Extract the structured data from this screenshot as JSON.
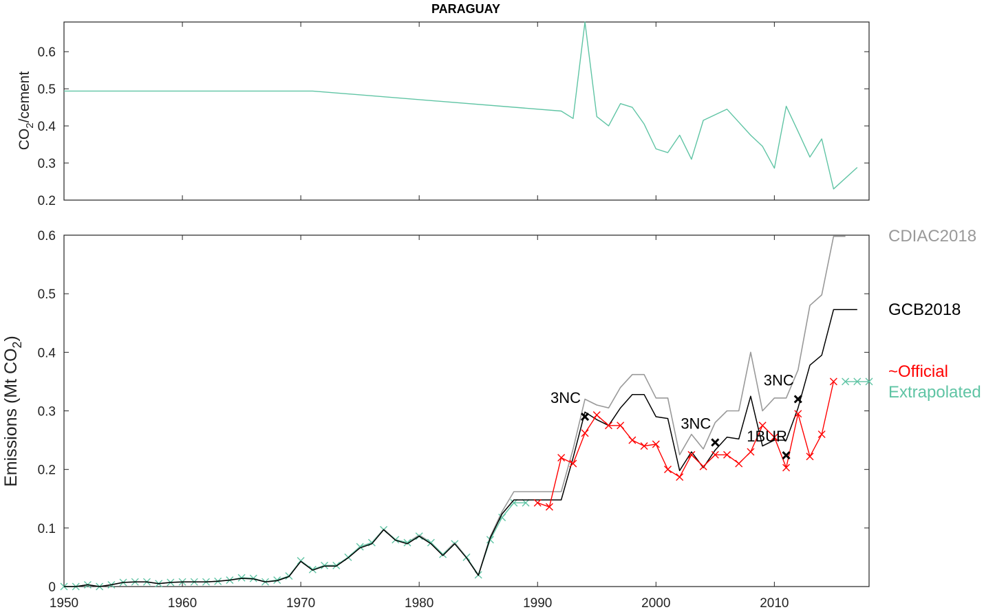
{
  "title": "PARAGUAY",
  "colors": {
    "cdiac": "#999999",
    "gcb": "#000000",
    "official": "#ff0000",
    "extrapolated": "#5fc4a4",
    "axis": "#222222"
  },
  "chart_data": [
    {
      "type": "line",
      "ylabel_main": "CO",
      "ylabel_sub": "2",
      "ylabel_rest": "/cement",
      "xlim": [
        1950,
        2018
      ],
      "ylim": [
        0.2,
        0.68
      ],
      "xticks": [
        1950,
        1960,
        1970,
        1980,
        1990,
        2000,
        2010
      ],
      "yticks": [
        0.2,
        0.3,
        0.4,
        0.5,
        0.6
      ],
      "ytick_labels": [
        "0.2",
        "0.3",
        "0.4",
        "0.5",
        "0.6"
      ],
      "series": [
        {
          "color_key": "extrapolated",
          "points": [
            [
              1950,
              0.494
            ],
            [
              1971,
              0.494
            ],
            [
              1992,
              0.44
            ],
            [
              1993,
              0.42
            ],
            [
              1994,
              0.68
            ],
            [
              1995,
              0.425
            ],
            [
              1996,
              0.4
            ],
            [
              1997,
              0.46
            ],
            [
              1998,
              0.45
            ],
            [
              1999,
              0.405
            ],
            [
              2000,
              0.338
            ],
            [
              2001,
              0.328
            ],
            [
              2002,
              0.375
            ],
            [
              2003,
              0.31
            ],
            [
              2004,
              0.415
            ],
            [
              2006,
              0.445
            ],
            [
              2007,
              0.41
            ],
            [
              2008,
              0.375
            ],
            [
              2009,
              0.345
            ],
            [
              2010,
              0.286
            ],
            [
              2011,
              0.453
            ],
            [
              2012,
              0.385
            ],
            [
              2013,
              0.316
            ],
            [
              2014,
              0.365
            ],
            [
              2015,
              0.23
            ],
            [
              2017,
              0.288
            ]
          ]
        }
      ]
    },
    {
      "type": "line",
      "ylabel_main": "Emissions (Mt CO",
      "ylabel_sub": "2",
      "ylabel_rest": ")",
      "xlim": [
        1950,
        2018
      ],
      "ylim": [
        0,
        0.6
      ],
      "xticks": [
        1950,
        1960,
        1970,
        1980,
        1990,
        2000,
        2010
      ],
      "xtick_labels": [
        "1950",
        "1960",
        "1970",
        "1980",
        "1990",
        "2000",
        "2010"
      ],
      "yticks": [
        0,
        0.1,
        0.2,
        0.3,
        0.4,
        0.5,
        0.6
      ],
      "ytick_labels": [
        "0",
        "0.1",
        "0.2",
        "0.3",
        "0.4",
        "0.5",
        "0.6"
      ],
      "legend": [
        {
          "label": "CDIAC2018",
          "color_key": "cdiac"
        },
        {
          "label": "GCB2018",
          "color_key": "gcb"
        },
        {
          "label": "~Official",
          "color_key": "official"
        },
        {
          "label": "Extrapolated",
          "color_key": "extrapolated"
        }
      ],
      "series": [
        {
          "name": "CDIAC2018",
          "color_key": "cdiac",
          "points": [
            [
              1950,
              0
            ],
            [
              1951,
              0
            ],
            [
              1952,
              0.003
            ],
            [
              1953,
              0
            ],
            [
              1954,
              0.003
            ],
            [
              1955,
              0.007
            ],
            [
              1956,
              0.008
            ],
            [
              1957,
              0.008
            ],
            [
              1958,
              0.005
            ],
            [
              1959,
              0.007
            ],
            [
              1960,
              0.008
            ],
            [
              1961,
              0.008
            ],
            [
              1962,
              0.008
            ],
            [
              1963,
              0.009
            ],
            [
              1964,
              0.011
            ],
            [
              1965,
              0.015
            ],
            [
              1966,
              0.014
            ],
            [
              1967,
              0.008
            ],
            [
              1968,
              0.011
            ],
            [
              1969,
              0.018
            ],
            [
              1970,
              0.044
            ],
            [
              1971,
              0.029
            ],
            [
              1972,
              0.036
            ],
            [
              1973,
              0.036
            ],
            [
              1974,
              0.05
            ],
            [
              1975,
              0.068
            ],
            [
              1976,
              0.075
            ],
            [
              1977,
              0.098
            ],
            [
              1978,
              0.08
            ],
            [
              1979,
              0.075
            ],
            [
              1980,
              0.088
            ],
            [
              1981,
              0.075
            ],
            [
              1982,
              0.055
            ],
            [
              1983,
              0.075
            ],
            [
              1984,
              0.05
            ],
            [
              1985,
              0.02
            ],
            [
              1986,
              0.085
            ],
            [
              1987,
              0.128
            ],
            [
              1988,
              0.162
            ],
            [
              1989,
              0.162
            ],
            [
              1990,
              0.162
            ],
            [
              1991,
              0.162
            ],
            [
              1992,
              0.162
            ],
            [
              1993,
              0.235
            ],
            [
              1994,
              0.32
            ],
            [
              1995,
              0.31
            ],
            [
              1996,
              0.305
            ],
            [
              1997,
              0.34
            ],
            [
              1998,
              0.362
            ],
            [
              1999,
              0.362
            ],
            [
              2000,
              0.322
            ],
            [
              2001,
              0.322
            ],
            [
              2002,
              0.225
            ],
            [
              2003,
              0.26
            ],
            [
              2004,
              0.235
            ],
            [
              2005,
              0.28
            ],
            [
              2006,
              0.3
            ],
            [
              2007,
              0.3
            ],
            [
              2008,
              0.4
            ],
            [
              2009,
              0.3
            ],
            [
              2010,
              0.322
            ],
            [
              2011,
              0.322
            ],
            [
              2012,
              0.37
            ],
            [
              2013,
              0.48
            ],
            [
              2014,
              0.498
            ],
            [
              2015,
              0.598
            ],
            [
              2016,
              0.598
            ]
          ]
        },
        {
          "name": "GCB2018",
          "color_key": "gcb",
          "points": [
            [
              1950,
              0
            ],
            [
              1951,
              0
            ],
            [
              1952,
              0.003
            ],
            [
              1953,
              0
            ],
            [
              1954,
              0.003
            ],
            [
              1955,
              0.007
            ],
            [
              1956,
              0.008
            ],
            [
              1957,
              0.008
            ],
            [
              1958,
              0.005
            ],
            [
              1959,
              0.007
            ],
            [
              1960,
              0.008
            ],
            [
              1961,
              0.008
            ],
            [
              1962,
              0.008
            ],
            [
              1963,
              0.009
            ],
            [
              1964,
              0.011
            ],
            [
              1965,
              0.014
            ],
            [
              1966,
              0.013
            ],
            [
              1967,
              0.008
            ],
            [
              1968,
              0.01
            ],
            [
              1969,
              0.017
            ],
            [
              1970,
              0.043
            ],
            [
              1971,
              0.028
            ],
            [
              1972,
              0.035
            ],
            [
              1973,
              0.035
            ],
            [
              1974,
              0.049
            ],
            [
              1975,
              0.066
            ],
            [
              1976,
              0.073
            ],
            [
              1977,
              0.097
            ],
            [
              1978,
              0.079
            ],
            [
              1979,
              0.073
            ],
            [
              1980,
              0.086
            ],
            [
              1981,
              0.073
            ],
            [
              1982,
              0.053
            ],
            [
              1983,
              0.073
            ],
            [
              1984,
              0.049
            ],
            [
              1985,
              0.019
            ],
            [
              1986,
              0.083
            ],
            [
              1987,
              0.124
            ],
            [
              1988,
              0.148
            ],
            [
              1989,
              0.148
            ],
            [
              1990,
              0.148
            ],
            [
              1991,
              0.148
            ],
            [
              1992,
              0.148
            ],
            [
              1993,
              0.22
            ],
            [
              1994,
              0.298
            ],
            [
              1995,
              0.285
            ],
            [
              1996,
              0.275
            ],
            [
              1997,
              0.305
            ],
            [
              1998,
              0.328
            ],
            [
              1999,
              0.328
            ],
            [
              2000,
              0.29
            ],
            [
              2001,
              0.287
            ],
            [
              2002,
              0.198
            ],
            [
              2003,
              0.23
            ],
            [
              2004,
              0.203
            ],
            [
              2005,
              0.233
            ],
            [
              2006,
              0.255
            ],
            [
              2007,
              0.252
            ],
            [
              2008,
              0.325
            ],
            [
              2009,
              0.24
            ],
            [
              2010,
              0.25
            ],
            [
              2011,
              0.25
            ],
            [
              2012,
              0.305
            ],
            [
              2013,
              0.378
            ],
            [
              2014,
              0.395
            ],
            [
              2015,
              0.473
            ],
            [
              2017,
              0.473
            ]
          ]
        },
        {
          "name": "~Official",
          "color_key": "official",
          "points": [
            [
              1990,
              0.143
            ],
            [
              1991,
              0.136
            ],
            [
              1992,
              0.22
            ],
            [
              1993,
              0.21
            ],
            [
              1994,
              0.262
            ],
            [
              1995,
              0.293
            ],
            [
              1996,
              0.275
            ],
            [
              1997,
              0.275
            ],
            [
              1998,
              0.25
            ],
            [
              1999,
              0.24
            ],
            [
              2000,
              0.243
            ],
            [
              2001,
              0.2
            ],
            [
              2002,
              0.187
            ],
            [
              2003,
              0.225
            ],
            [
              2004,
              0.205
            ],
            [
              2005,
              0.225
            ],
            [
              2006,
              0.225
            ],
            [
              2007,
              0.21
            ],
            [
              2008,
              0.23
            ],
            [
              2009,
              0.275
            ],
            [
              2010,
              0.255
            ],
            [
              2011,
              0.203
            ],
            [
              2012,
              0.295
            ],
            [
              2013,
              0.222
            ],
            [
              2014,
              0.26
            ],
            [
              2015,
              0.35
            ]
          ]
        },
        {
          "name": "Extrapolated",
          "color_key": "extrapolated",
          "points": [
            [
              1950,
              0
            ],
            [
              1951,
              0
            ],
            [
              1952,
              0.003
            ],
            [
              1953,
              0
            ],
            [
              1954,
              0.003
            ],
            [
              1955,
              0.007
            ],
            [
              1956,
              0.008
            ],
            [
              1957,
              0.008
            ],
            [
              1958,
              0.005
            ],
            [
              1959,
              0.007
            ],
            [
              1960,
              0.008
            ],
            [
              1961,
              0.008
            ],
            [
              1962,
              0.008
            ],
            [
              1963,
              0.009
            ],
            [
              1964,
              0.011
            ],
            [
              1965,
              0.015
            ],
            [
              1966,
              0.014
            ],
            [
              1967,
              0.008
            ],
            [
              1968,
              0.011
            ],
            [
              1969,
              0.018
            ],
            [
              1970,
              0.044
            ],
            [
              1971,
              0.029
            ],
            [
              1972,
              0.036
            ],
            [
              1973,
              0.036
            ],
            [
              1974,
              0.05
            ],
            [
              1975,
              0.068
            ],
            [
              1976,
              0.075
            ],
            [
              1977,
              0.097
            ],
            [
              1978,
              0.08
            ],
            [
              1979,
              0.075
            ],
            [
              1980,
              0.086
            ],
            [
              1981,
              0.075
            ],
            [
              1982,
              0.055
            ],
            [
              1983,
              0.073
            ],
            [
              1984,
              0.05
            ],
            [
              1985,
              0.02
            ],
            [
              1986,
              0.08
            ],
            [
              1987,
              0.118
            ],
            [
              1988,
              0.143
            ],
            [
              1989,
              0.143
            ]
          ],
          "extra_points": [
            [
              2016,
              0.35
            ],
            [
              2017,
              0.35
            ],
            [
              2018,
              0.35
            ]
          ]
        }
      ],
      "annotations": [
        {
          "label": "3NC",
          "x": 1994,
          "y": 0.29
        },
        {
          "label": "3NC",
          "x": 2005,
          "y": 0.246
        },
        {
          "label": "1BUR",
          "x": 2011,
          "y": 0.224
        },
        {
          "label": "3NC",
          "x": 2012,
          "y": 0.32
        }
      ]
    }
  ]
}
